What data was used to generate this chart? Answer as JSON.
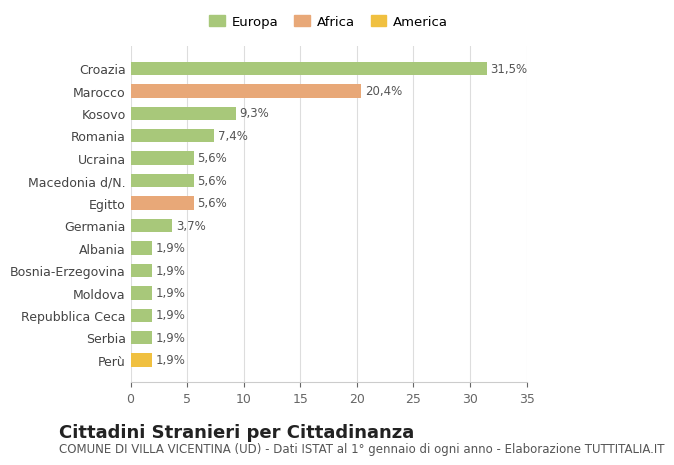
{
  "categories": [
    "Perù",
    "Serbia",
    "Repubblica Ceca",
    "Moldova",
    "Bosnia-Erzegovina",
    "Albania",
    "Germania",
    "Egitto",
    "Macedonia d/N.",
    "Ucraina",
    "Romania",
    "Kosovo",
    "Marocco",
    "Croazia"
  ],
  "values": [
    1.9,
    1.9,
    1.9,
    1.9,
    1.9,
    1.9,
    3.7,
    5.6,
    5.6,
    5.6,
    7.4,
    9.3,
    20.4,
    31.5
  ],
  "labels": [
    "1,9%",
    "1,9%",
    "1,9%",
    "1,9%",
    "1,9%",
    "1,9%",
    "3,7%",
    "5,6%",
    "5,6%",
    "5,6%",
    "7,4%",
    "9,3%",
    "20,4%",
    "31,5%"
  ],
  "colors": [
    "#f0c040",
    "#a8c87a",
    "#a8c87a",
    "#a8c87a",
    "#a8c87a",
    "#a8c87a",
    "#a8c87a",
    "#e8a878",
    "#a8c87a",
    "#a8c87a",
    "#a8c87a",
    "#a8c87a",
    "#e8a878",
    "#a8c87a"
  ],
  "legend": [
    {
      "label": "Europa",
      "color": "#a8c87a"
    },
    {
      "label": "Africa",
      "color": "#e8a878"
    },
    {
      "label": "America",
      "color": "#f0c040"
    }
  ],
  "xlim": [
    0,
    35
  ],
  "xticks": [
    0,
    5,
    10,
    15,
    20,
    25,
    30,
    35
  ],
  "title": "Cittadini Stranieri per Cittadinanza",
  "subtitle": "COMUNE DI VILLA VICENTINA (UD) - Dati ISTAT al 1° gennaio di ogni anno - Elaborazione TUTTITALIA.IT",
  "background_color": "#ffffff",
  "grid_color": "#dddddd",
  "bar_height": 0.6,
  "title_fontsize": 13,
  "subtitle_fontsize": 8.5,
  "label_fontsize": 8.5,
  "tick_fontsize": 9
}
